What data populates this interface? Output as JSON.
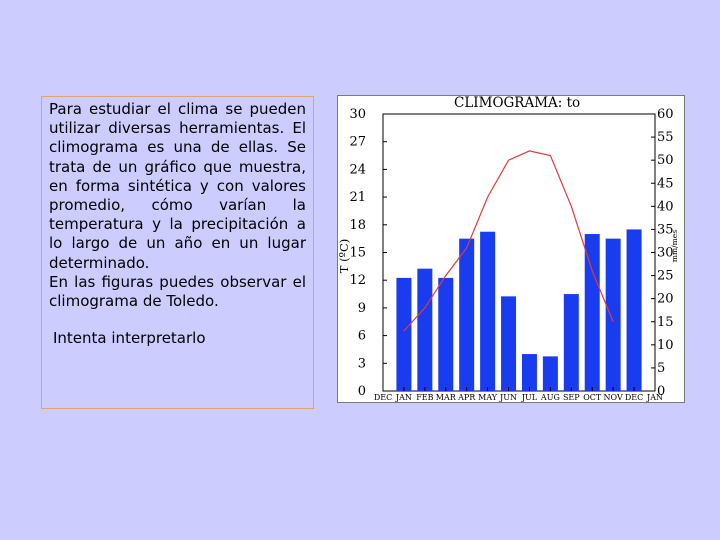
{
  "text": {
    "paragraph1": "Para estudiar el clima se pueden utilizar diversas herramientas. El climograma es una de ellas. Se trata de un gráfico que muestra, en forma sintética y con valores promedio, cómo varían la temperatura y la precipitación a lo largo de un año en un lugar determinado.",
    "paragraph2": "En las figuras puedes observar el climograma de Toledo.",
    "cta": "Intenta interpretarlo"
  },
  "chart_data": {
    "type": "bar",
    "title": "CLIMOGRAMA: to",
    "ylabel": "T (ºC)",
    "y2label": "mm/mes",
    "categories": [
      "DEC",
      "JAN",
      "FEB",
      "MAR",
      "APR",
      "MAY",
      "JUN",
      "JUL",
      "AUG",
      "SEP",
      "OCT",
      "NOV",
      "DEC",
      "JAN"
    ],
    "bar_categories": [
      "JAN",
      "FEB",
      "MAR",
      "APR",
      "MAY",
      "JUN",
      "JUL",
      "AUG",
      "SEP",
      "OCT",
      "NOV",
      "DEC"
    ],
    "precipitation": [
      24.5,
      26.5,
      24.5,
      33,
      34.5,
      20.5,
      8,
      7.5,
      21,
      34,
      33,
      35
    ],
    "temperature": [
      6.5,
      9,
      12.5,
      15.5,
      21,
      25,
      26,
      25.5,
      20,
      13,
      7.5
    ],
    "temperature_x": [
      1,
      2,
      3,
      4,
      5,
      6,
      7,
      8,
      9,
      10,
      11
    ],
    "ylim": [
      0,
      30
    ],
    "yticks": [
      "0",
      "3",
      "6",
      "9",
      "12",
      "15",
      "18",
      "21",
      "24",
      "27",
      "30"
    ],
    "y2lim": [
      0,
      60
    ],
    "y2ticks": [
      "0",
      "5",
      "10",
      "15",
      "20",
      "25",
      "30",
      "35",
      "40",
      "45",
      "50",
      "55",
      "60"
    ],
    "bar_color": "#1a3cf0",
    "line_color": "#e03a3a"
  }
}
